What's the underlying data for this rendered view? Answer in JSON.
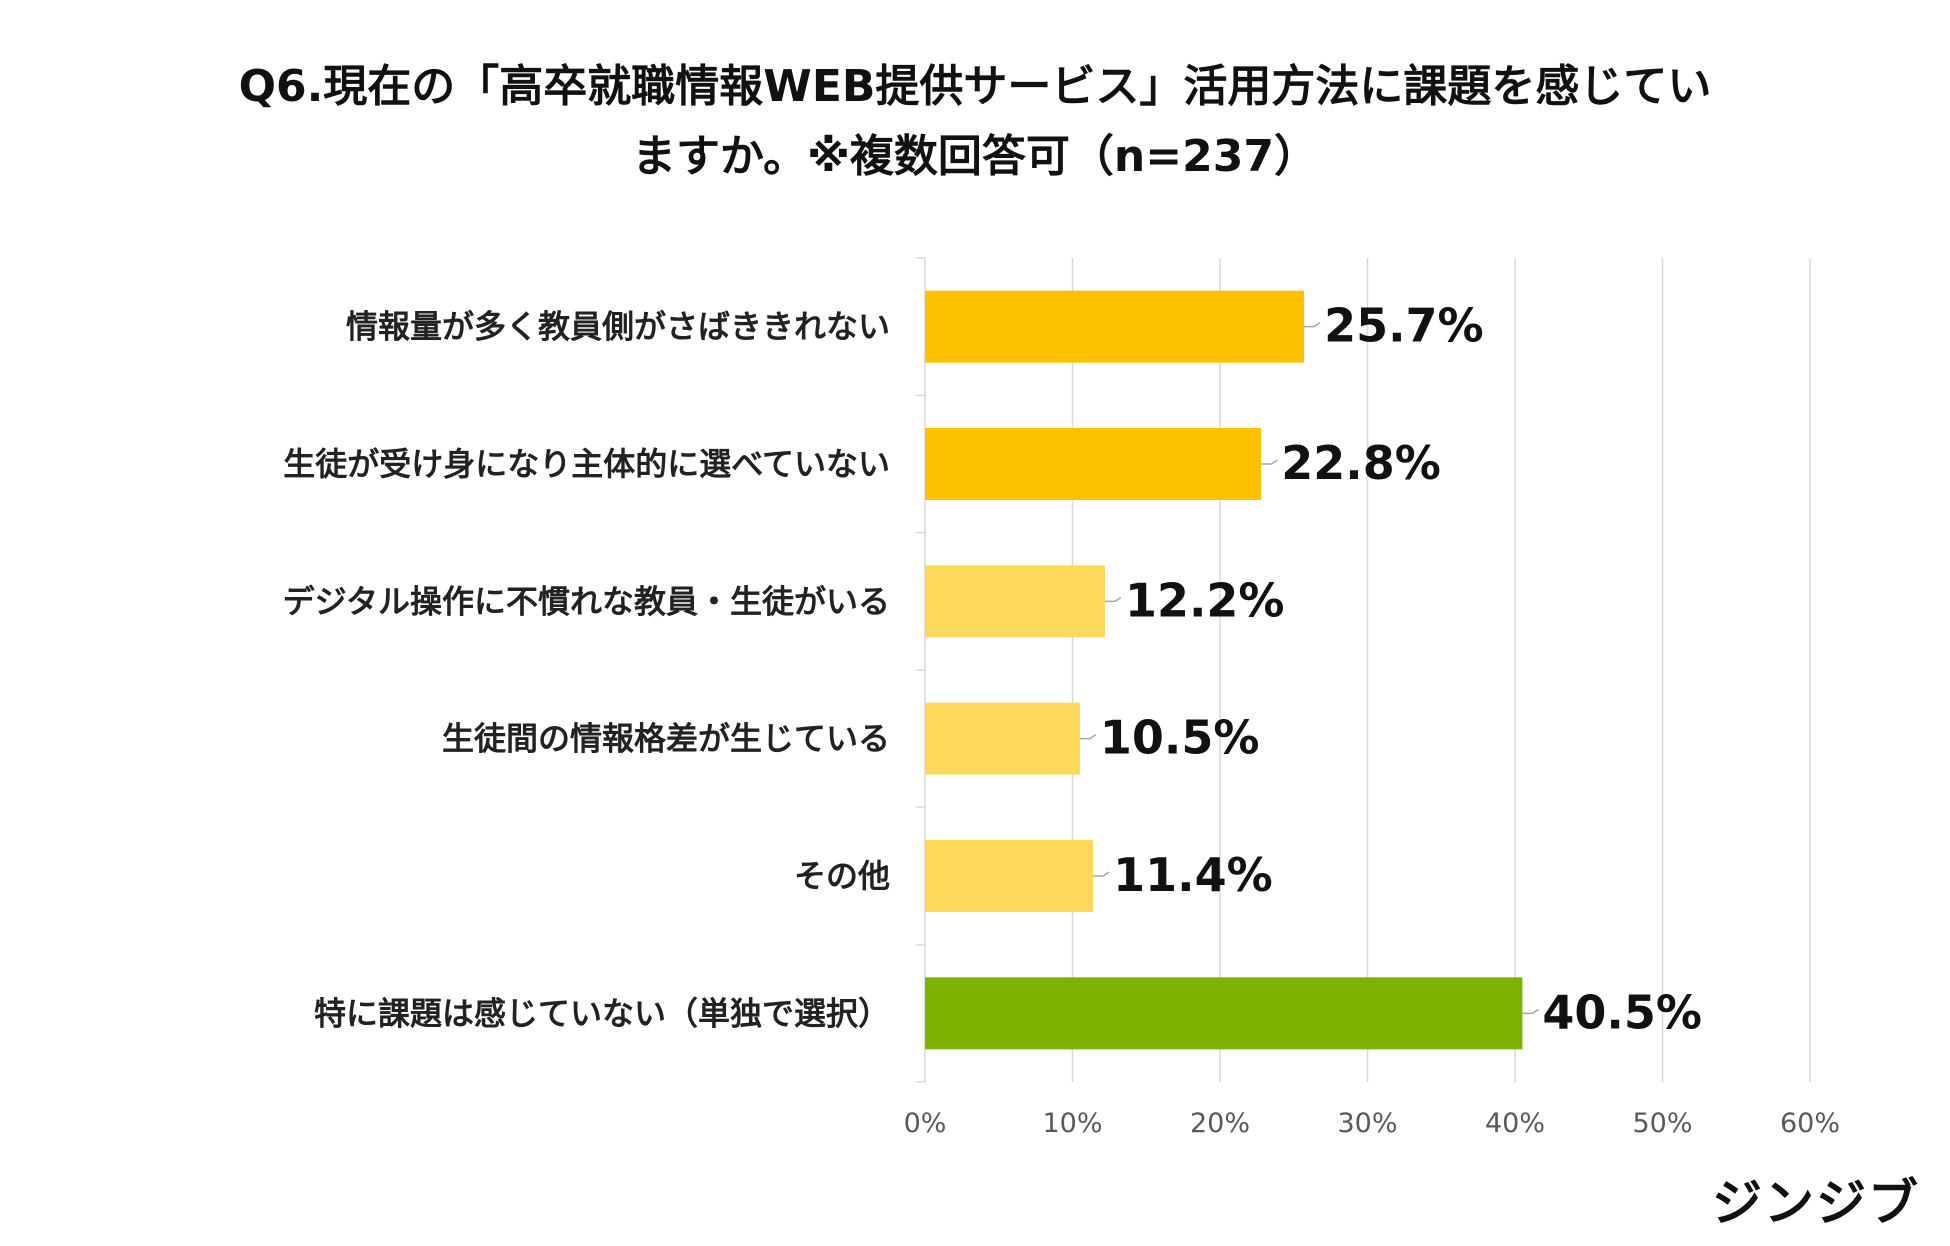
{
  "chart_data": {
    "type": "bar",
    "orientation": "horizontal",
    "title_lines": [
      "Q6.現在の「高卒就職情報WEB提供サービス」活用方法に課題を感じてい",
      "ますか。※複数回答可（n=237）"
    ],
    "categories": [
      "情報量が多く教員側がさばききれない",
      "生徒が受け身になり主体的に選べていない",
      "デジタル操作に不慣れな教員・生徒がいる",
      "生徒間の情報格差が生じている",
      "その他",
      "特に課題は感じていない（単独で選択）"
    ],
    "values": [
      25.7,
      22.8,
      12.2,
      10.5,
      11.4,
      40.5
    ],
    "value_labels": [
      "25.7%",
      "22.8%",
      "12.2%",
      "10.5%",
      "11.4%",
      "40.5%"
    ],
    "bar_colors": [
      "#FDC100",
      "#FDC100",
      "#FDD85A",
      "#FDD85A",
      "#FDD85A",
      "#7FB200"
    ],
    "xlim": [
      0,
      60
    ],
    "x_ticks": [
      0,
      10,
      20,
      30,
      40,
      50,
      60
    ],
    "x_tick_labels": [
      "0%",
      "10%",
      "20%",
      "30%",
      "40%",
      "50%",
      "60%"
    ],
    "xlabel": "",
    "ylabel": "",
    "grid": true,
    "legend": "none"
  },
  "brand": {
    "logo_text": "ジンジブ"
  }
}
